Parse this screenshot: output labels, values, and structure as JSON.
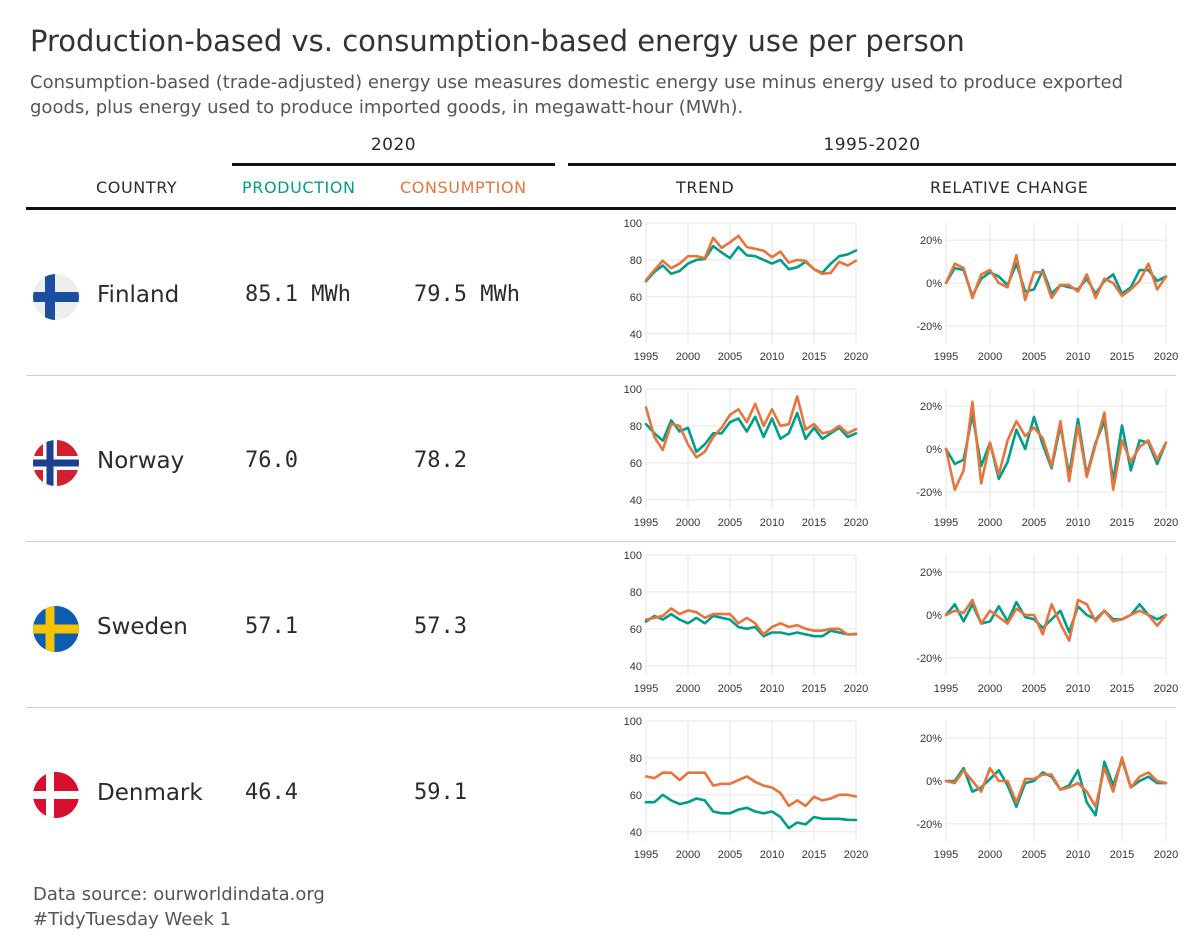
{
  "title": "Production-based vs. consumption-based energy use per person",
  "subtitle": "Consumption-based (trade-adjusted) energy use measures domestic energy use minus energy used to produce exported goods, plus energy used to produce imported goods, in megawatt-hour (MWh).",
  "header": {
    "group_2020": "2020",
    "group_range": "1995-2020",
    "country": "COUNTRY",
    "production": "PRODUCTION",
    "consumption": "CONSUMPTION",
    "trend": "TREND",
    "relative_change": "RELATIVE CHANGE"
  },
  "colors": {
    "production": "#009E8A",
    "consumption": "#E8743B",
    "grid": "#e6e6e6",
    "text": "#2b2b2b"
  },
  "rows": [
    {
      "country": "Finland",
      "production": "85.1 MWh",
      "consumption": "79.5 MWh",
      "flag_icon": "finland-flag-icon"
    },
    {
      "country": "Norway",
      "production": "76.0",
      "consumption": "78.2",
      "flag_icon": "norway-flag-icon"
    },
    {
      "country": "Sweden",
      "production": "57.1",
      "consumption": "57.3",
      "flag_icon": "sweden-flag-icon"
    },
    {
      "country": "Denmark",
      "production": "46.4",
      "consumption": "59.1",
      "flag_icon": "denmark-flag-icon"
    }
  ],
  "chart_data": [
    {
      "type": "line",
      "country": "Finland",
      "panel": "trend",
      "x": [
        1995,
        1996,
        1997,
        1998,
        1999,
        2000,
        2001,
        2002,
        2003,
        2004,
        2005,
        2006,
        2007,
        2008,
        2009,
        2010,
        2011,
        2012,
        2013,
        2014,
        2015,
        2016,
        2017,
        2018,
        2019,
        2020
      ],
      "xticks": [
        1995,
        2000,
        2005,
        2010,
        2015,
        2020
      ],
      "ylim": [
        35,
        100
      ],
      "yticks": [
        40,
        60,
        80,
        100
      ],
      "series": [
        {
          "name": "PRODUCTION",
          "values": [
            68.5,
            73.5,
            77,
            72.5,
            74,
            78,
            80,
            80.5,
            87.5,
            84,
            81,
            87,
            82.5,
            82,
            80,
            78,
            80,
            75,
            76,
            79,
            75,
            73,
            78,
            82,
            83,
            85.1
          ]
        },
        {
          "name": "CONSUMPTION",
          "values": [
            69,
            74.5,
            79.5,
            75.5,
            78,
            82,
            82,
            81,
            92,
            86.5,
            89.5,
            93,
            87,
            86,
            85,
            81.5,
            84.5,
            78.5,
            80,
            79.5,
            75,
            72.5,
            73,
            79,
            77,
            79.5
          ]
        }
      ]
    },
    {
      "type": "line",
      "country": "Finland",
      "panel": "relative_change",
      "x": [
        1995,
        1996,
        1997,
        1998,
        1999,
        2000,
        2001,
        2002,
        2003,
        2004,
        2005,
        2006,
        2007,
        2008,
        2009,
        2010,
        2011,
        2012,
        2013,
        2014,
        2015,
        2016,
        2017,
        2018,
        2019,
        2020
      ],
      "xticks": [
        1995,
        2000,
        2005,
        2010,
        2015,
        2020
      ],
      "ylim": [
        -28,
        28
      ],
      "yticks": [
        -20,
        0,
        20
      ],
      "yticklabels": [
        "-20%",
        "0%",
        "20%"
      ],
      "series": [
        {
          "name": "PRODUCTION",
          "values": [
            0,
            7,
            6,
            -6,
            2,
            5,
            3,
            -1,
            9,
            -4,
            -3,
            6,
            -5,
            -1,
            -2,
            -3,
            2,
            -5,
            1,
            4,
            -5,
            -2,
            6,
            6,
            1,
            3
          ]
        },
        {
          "name": "CONSUMPTION",
          "values": [
            0,
            9,
            7,
            -7,
            4,
            6,
            0,
            -2,
            13,
            -8,
            5,
            5,
            -7,
            -1,
            -1,
            -4,
            4,
            -7,
            2,
            0,
            -6,
            -3,
            1,
            9,
            -3,
            3
          ]
        }
      ]
    },
    {
      "type": "line",
      "country": "Norway",
      "panel": "trend",
      "x": [
        1995,
        1996,
        1997,
        1998,
        1999,
        2000,
        2001,
        2002,
        2003,
        2004,
        2005,
        2006,
        2007,
        2008,
        2009,
        2010,
        2011,
        2012,
        2013,
        2014,
        2015,
        2016,
        2017,
        2018,
        2019,
        2020
      ],
      "xticks": [
        1995,
        2000,
        2005,
        2010,
        2015,
        2020
      ],
      "ylim": [
        35,
        100
      ],
      "yticks": [
        40,
        60,
        80,
        100
      ],
      "series": [
        {
          "name": "PRODUCTION",
          "values": [
            81,
            76,
            72,
            83,
            77,
            79,
            66,
            70,
            76,
            76,
            82,
            84,
            77,
            85,
            74,
            84,
            73,
            76,
            87,
            73,
            79,
            73,
            76,
            79,
            74,
            76
          ]
        },
        {
          "name": "CONSUMPTION",
          "values": [
            90,
            74,
            67,
            81,
            80,
            70,
            63,
            66,
            74,
            79,
            86,
            89,
            82,
            92,
            80,
            89,
            80,
            81,
            96,
            78,
            81,
            76,
            77,
            80,
            76,
            78.2
          ]
        }
      ]
    },
    {
      "type": "line",
      "country": "Norway",
      "panel": "relative_change",
      "x": [
        1995,
        1996,
        1997,
        1998,
        1999,
        2000,
        2001,
        2002,
        2003,
        2004,
        2005,
        2006,
        2007,
        2008,
        2009,
        2010,
        2011,
        2012,
        2013,
        2014,
        2015,
        2016,
        2017,
        2018,
        2019,
        2020
      ],
      "xticks": [
        1995,
        2000,
        2005,
        2010,
        2015,
        2020
      ],
      "ylim": [
        -28,
        28
      ],
      "yticks": [
        -20,
        0,
        20
      ],
      "yticklabels": [
        "-20%",
        "0%",
        "20%"
      ],
      "series": [
        {
          "name": "PRODUCTION",
          "values": [
            0,
            -7,
            -5,
            16,
            -8,
            3,
            -14,
            -6,
            9,
            0,
            15,
            2,
            -9,
            11,
            -12,
            14,
            -12,
            3,
            13,
            -15,
            11,
            -10,
            4,
            3,
            -7,
            3
          ]
        },
        {
          "name": "CONSUMPTION",
          "values": [
            0,
            -19,
            -10,
            22,
            -16,
            3,
            -12,
            4,
            13,
            6,
            10,
            5,
            -8,
            13,
            -15,
            11,
            -13,
            2,
            17,
            -19,
            4,
            -6,
            1,
            4,
            -5,
            3
          ]
        }
      ]
    },
    {
      "type": "line",
      "country": "Sweden",
      "panel": "trend",
      "x": [
        1995,
        1996,
        1997,
        1998,
        1999,
        2000,
        2001,
        2002,
        2003,
        2004,
        2005,
        2006,
        2007,
        2008,
        2009,
        2010,
        2011,
        2012,
        2013,
        2014,
        2015,
        2016,
        2017,
        2018,
        2019,
        2020
      ],
      "xticks": [
        1995,
        2000,
        2005,
        2010,
        2015,
        2020
      ],
      "ylim": [
        35,
        100
      ],
      "yticks": [
        40,
        60,
        80,
        100
      ],
      "series": [
        {
          "name": "PRODUCTION",
          "values": [
            64,
            67,
            65,
            68,
            65,
            63,
            66,
            63,
            67,
            66,
            65,
            61,
            60,
            61,
            56,
            58,
            58,
            57,
            58,
            57,
            56,
            56,
            59,
            58,
            57,
            57.1
          ]
        },
        {
          "name": "CONSUMPTION",
          "values": [
            65,
            66,
            67,
            71,
            68,
            70,
            69,
            66,
            68,
            68,
            68,
            63,
            66,
            63,
            57,
            61,
            63,
            61,
            62,
            60,
            59,
            59,
            60,
            60,
            57,
            57.3
          ]
        }
      ]
    },
    {
      "type": "line",
      "country": "Sweden",
      "panel": "relative_change",
      "x": [
        1995,
        1996,
        1997,
        1998,
        1999,
        2000,
        2001,
        2002,
        2003,
        2004,
        2005,
        2006,
        2007,
        2008,
        2009,
        2010,
        2011,
        2012,
        2013,
        2014,
        2015,
        2016,
        2017,
        2018,
        2019,
        2020
      ],
      "xticks": [
        1995,
        2000,
        2005,
        2010,
        2015,
        2020
      ],
      "ylim": [
        -28,
        28
      ],
      "yticks": [
        -20,
        0,
        20
      ],
      "yticklabels": [
        "-20%",
        "0%",
        "20%"
      ],
      "series": [
        {
          "name": "PRODUCTION",
          "values": [
            0,
            5,
            -3,
            5,
            -4,
            -3,
            4,
            -3,
            6,
            -1,
            -2,
            -6,
            -2,
            2,
            -8,
            4,
            0,
            -2,
            2,
            -2,
            -2,
            0,
            5,
            0,
            -2,
            0
          ]
        },
        {
          "name": "CONSUMPTION",
          "values": [
            0,
            2,
            1,
            7,
            -4,
            2,
            -1,
            -4,
            3,
            0,
            0,
            -9,
            5,
            -4,
            -12,
            7,
            5,
            -3,
            2,
            -3,
            -2,
            0,
            2,
            0,
            -5,
            0
          ]
        }
      ]
    },
    {
      "type": "line",
      "country": "Denmark",
      "panel": "trend",
      "x": [
        1995,
        1996,
        1997,
        1998,
        1999,
        2000,
        2001,
        2002,
        2003,
        2004,
        2005,
        2006,
        2007,
        2008,
        2009,
        2010,
        2011,
        2012,
        2013,
        2014,
        2015,
        2016,
        2017,
        2018,
        2019,
        2020
      ],
      "xticks": [
        1995,
        2000,
        2005,
        2010,
        2015,
        2020
      ],
      "ylim": [
        35,
        100
      ],
      "yticks": [
        40,
        60,
        80,
        100
      ],
      "series": [
        {
          "name": "PRODUCTION",
          "values": [
            56,
            56,
            60,
            57,
            55,
            56,
            58,
            57,
            51,
            50,
            50,
            52,
            53,
            51,
            50,
            51,
            48,
            42,
            45,
            44,
            48,
            47,
            47,
            47,
            46.5,
            46.4
          ]
        },
        {
          "name": "CONSUMPTION",
          "values": [
            70,
            69,
            72,
            72,
            68,
            72,
            72,
            72,
            65,
            66,
            66,
            68,
            70,
            67,
            65,
            64,
            61,
            54,
            57,
            54,
            59,
            57,
            58,
            60,
            60,
            59.1
          ]
        }
      ]
    },
    {
      "type": "line",
      "country": "Denmark",
      "panel": "relative_change",
      "x": [
        1995,
        1996,
        1997,
        1998,
        1999,
        2000,
        2001,
        2002,
        2003,
        2004,
        2005,
        2006,
        2007,
        2008,
        2009,
        2010,
        2011,
        2012,
        2013,
        2014,
        2015,
        2016,
        2017,
        2018,
        2019,
        2020
      ],
      "xticks": [
        1995,
        2000,
        2005,
        2010,
        2015,
        2020
      ],
      "ylim": [
        -28,
        28
      ],
      "yticks": [
        -20,
        0,
        20
      ],
      "yticklabels": [
        "-20%",
        "0%",
        "20%"
      ],
      "series": [
        {
          "name": "PRODUCTION",
          "values": [
            0,
            0,
            6,
            -5,
            -3,
            1,
            5,
            -2,
            -12,
            -1,
            0,
            4,
            2,
            -4,
            -2,
            5,
            -10,
            -16,
            9,
            -2,
            10,
            -3,
            0,
            2,
            -1,
            -1
          ]
        },
        {
          "name": "CONSUMPTION",
          "values": [
            0,
            -1,
            5,
            0,
            -5,
            6,
            0,
            0,
            -10,
            1,
            1,
            3,
            3,
            -4,
            -3,
            -1,
            -5,
            -12,
            6,
            -5,
            11,
            -3,
            2,
            4,
            0,
            -1
          ]
        }
      ]
    }
  ]
}
